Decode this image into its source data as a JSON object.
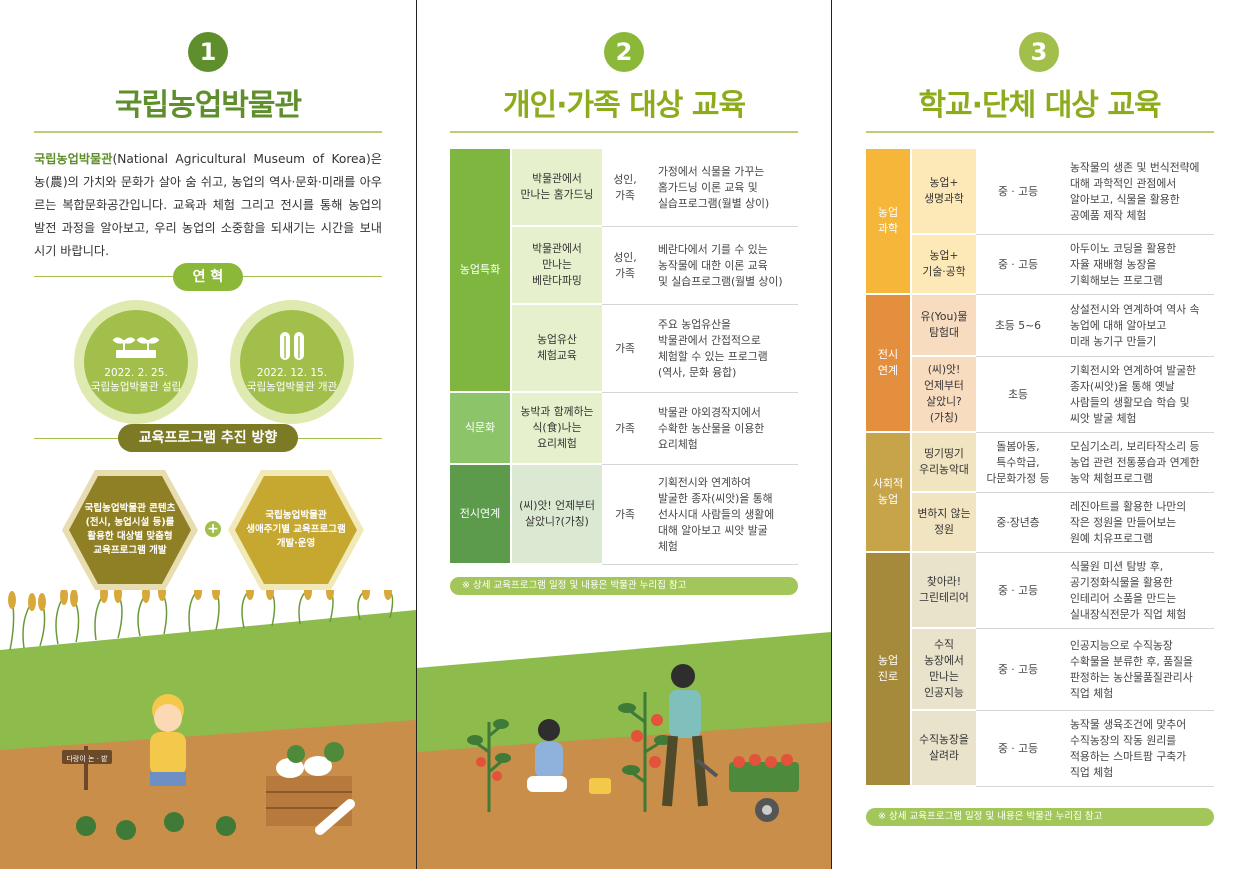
{
  "colors": {
    "green_title": "#5f8f2c",
    "olive": "#a2bf4b",
    "yellow_title": "#8cac1c",
    "light_green": "#a3c65a",
    "dark_green": "#5c9a4c"
  },
  "panel1": {
    "badge": "1",
    "title": "국립농업박물관",
    "intro_lead": "국립농업박물관",
    "intro_rest": "(National Agricultural Museum of Korea)은 농(農)의 가치와 문화가 살아 숨 쉬고, 농업의 역사·문화·미래를 아우르는 복합문화공간입니다. 교육과 체험 그리고 전시를 통해 농업의 발전 과정을 알아보고, 우리 농업의 소중함을 되새기는 시간을 보내시기 바랍니다.",
    "history_label": "연 혁",
    "history": [
      {
        "icon": "sprout-icon",
        "date": "2022. 2. 25.",
        "desc": "국립농업박물관 설립"
      },
      {
        "icon": "wheat-icon",
        "date": "2022. 12. 15.",
        "desc": "국립농업박물관 개관"
      }
    ],
    "direction_label": "교육프로그램 추진 방향",
    "direction": [
      {
        "lines": [
          "국립농업박물관 콘텐츠",
          "(전시, 농업시설 등)를",
          "활용한 대상별 맞춤형",
          "교육프로그램 개발"
        ]
      },
      {
        "lines": [
          "국립농업박물관",
          "생애주기별 교육프로그램",
          "개발·운영"
        ]
      }
    ],
    "sign_text": "다랑이 논 · 밭"
  },
  "panel2": {
    "badge": "2",
    "title": "개인·가족 대상 교육",
    "groups": [
      {
        "category": "농업특화",
        "rows": [
          {
            "program": "박물관에서\n만나는 홈가드닝",
            "target": "성인,\n가족",
            "desc": "가정에서 식물을 가꾸는\n홈가드닝 이론 교육 및\n실습프로그램(월별 상이)"
          },
          {
            "program": "박물관에서\n만나는\n베란다파밍",
            "target": "성인,\n가족",
            "desc": "베란다에서 기를 수 있는\n농작물에 대한 이론 교육\n및 실습프로그램(월별 상이)"
          },
          {
            "program": "농업유산\n체험교육",
            "target": "가족",
            "desc": "주요 농업유산을\n박물관에서 간접적으로\n체험할 수 있는 프로그램\n(역사, 문화 융합)"
          }
        ]
      },
      {
        "category": "식문화",
        "rows": [
          {
            "program": "농박과 함께하는\n식(食)나는\n요리체험",
            "target": "가족",
            "desc": "박물관 야외경작지에서\n수확한 농산물을 이용한\n요리체험"
          }
        ]
      },
      {
        "category": "전시연계",
        "rows": [
          {
            "program": "(씨)앗! 언제부터\n살았니?(가칭)",
            "target": "가족",
            "desc": "기획전시와 연계하여\n발굴한 종자(씨앗)을 통해\n선사시대 사람들의 생활에\n대해 알아보고 씨앗 발굴\n체험"
          }
        ]
      }
    ],
    "note": "※ 상세 교육프로그램 일정 및 내용은 박물관 누리집 참고"
  },
  "panel3": {
    "badge": "3",
    "title": "학교·단체 대상 교육",
    "groups": [
      {
        "category": "농업\n과학",
        "rows": [
          {
            "program": "농업+\n생명과학",
            "target": "중 · 고등",
            "desc": "농작물의 생존 및 번식전략에\n대해 과학적인 관점에서\n알아보고, 식물을 활용한\n공예품 제작 체험"
          },
          {
            "program": "농업+\n기술·공학",
            "target": "중 · 고등",
            "desc": "아두이노 코딩을 활용한\n자율 재배형 농장을\n기획해보는 프로그램"
          }
        ]
      },
      {
        "category": "전시\n연계",
        "rows": [
          {
            "program": "유(You)물\n탐험대",
            "target": "초등 5~6",
            "desc": "상설전시와 연계하여 역사 속\n농업에 대해 알아보고\n미래 농기구 만들기"
          },
          {
            "program": "(씨)앗!\n언제부터\n살았니?\n(가칭)",
            "target": "초등",
            "desc": "기획전시와 연계하여 발굴한\n종자(씨앗)을 통해 옛날\n사람들의 생활모습 학습 및\n씨앗 발굴 체험"
          }
        ]
      },
      {
        "category": "사회적\n농업",
        "rows": [
          {
            "program": "띵기띵기\n우리농악대",
            "target": "돌봄아동,\n특수학급,\n다문화가정 등",
            "desc": "모심기소리, 보리타작소리 등\n농업 관련 전통풍습과 연계한\n농악 체험프로그램"
          },
          {
            "program": "변하지 않는\n정원",
            "target": "중·장년층",
            "desc": "레진아트를 활용한 나만의\n작은 정원을 만들어보는\n원예 치유프로그램"
          }
        ]
      },
      {
        "category": "농업\n진로",
        "rows": [
          {
            "program": "찾아라!\n그린테리어",
            "target": "중 · 고등",
            "desc": "식물원 미션 탐방 후,\n공기정화식물을 활용한\n인테리어 소품을 만드는\n실내장식전문가 직업 체험"
          },
          {
            "program": "수직\n농장에서\n만나는\n인공지능",
            "target": "중 · 고등",
            "desc": "인공지능으로 수직농장\n수확물을 분류한 후, 품질을\n판정하는 농산물품질관리사\n직업 체험"
          },
          {
            "program": "수직농장을\n살려라",
            "target": "중 · 고등",
            "desc": "농작물 생육조건에 맞추어\n수직농장의 작동 원리를\n적용하는 스마트팜 구축가\n직업 체험"
          }
        ]
      }
    ],
    "note": "※ 상세 교육프로그램 일정 및 내용은 박물관 누리집 참고"
  }
}
